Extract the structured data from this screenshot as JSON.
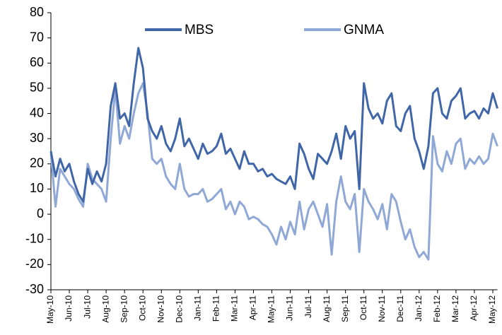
{
  "chart_data": {
    "type": "line",
    "categories": [
      "May-10",
      null,
      null,
      null,
      "Jun-10",
      null,
      null,
      null,
      "Jul-10",
      null,
      null,
      null,
      "Aug-10",
      null,
      null,
      null,
      "Sep-10",
      null,
      null,
      null,
      "Oct-10",
      null,
      null,
      null,
      "Nov-10",
      null,
      null,
      null,
      "Dec-10",
      null,
      null,
      null,
      "Jan-11",
      null,
      null,
      null,
      "Feb-11",
      null,
      null,
      null,
      "Mar-11",
      null,
      null,
      null,
      "Apr-11",
      null,
      null,
      null,
      "May-11",
      null,
      null,
      null,
      "Jun-11",
      null,
      null,
      null,
      "Jul-11",
      null,
      null,
      null,
      "Aug-11",
      null,
      null,
      null,
      "Sep-11",
      null,
      null,
      null,
      "Oct-11",
      null,
      null,
      null,
      "Nov-11",
      null,
      null,
      null,
      "Dec-11",
      null,
      null,
      null,
      "Jan-12",
      null,
      null,
      null,
      "Feb-12",
      null,
      null,
      null,
      "Mar-12",
      null,
      null,
      null,
      "Apr-12",
      null,
      null,
      null,
      "May-12",
      null
    ],
    "series": [
      {
        "name": "MBS",
        "color": "#4066a8",
        "values": [
          25,
          15,
          22,
          17,
          20,
          13,
          8,
          5,
          18,
          12,
          17,
          13,
          20,
          43,
          52,
          38,
          40,
          35,
          52,
          66,
          58,
          38,
          33,
          30,
          35,
          28,
          25,
          30,
          38,
          27,
          30,
          26,
          22,
          28,
          24,
          25,
          27,
          32,
          24,
          26,
          22,
          18,
          25,
          20,
          20,
          17,
          18,
          15,
          16,
          14,
          13,
          12,
          15,
          10,
          28,
          24,
          18,
          14,
          24,
          22,
          20,
          25,
          32,
          22,
          35,
          30,
          33,
          10,
          52,
          42,
          38,
          40,
          36,
          45,
          48,
          35,
          33,
          40,
          43,
          30,
          25,
          18,
          27,
          48,
          50,
          40,
          38,
          45,
          47,
          50,
          38,
          40,
          41,
          38,
          42,
          40,
          48,
          42
        ]
      },
      {
        "name": "GNMA",
        "color": "#8fa8d6",
        "values": [
          24,
          3,
          18,
          15,
          12,
          10,
          6,
          3,
          20,
          14,
          12,
          10,
          5,
          30,
          50,
          28,
          35,
          30,
          40,
          48,
          52,
          40,
          22,
          20,
          22,
          15,
          12,
          10,
          20,
          10,
          7,
          8,
          8,
          10,
          5,
          6,
          8,
          10,
          2,
          5,
          0,
          5,
          3,
          -2,
          -1,
          -2,
          -4,
          -5,
          -8,
          -12,
          -5,
          -10,
          -3,
          -8,
          5,
          -6,
          2,
          5,
          0,
          -5,
          4,
          -16,
          5,
          15,
          5,
          2,
          8,
          -15,
          10,
          5,
          2,
          -2,
          4,
          -6,
          8,
          5,
          -3,
          -10,
          -6,
          -13,
          -17,
          -15,
          -18,
          31,
          20,
          17,
          25,
          20,
          28,
          30,
          18,
          22,
          20,
          23,
          20,
          22,
          32,
          27
        ]
      }
    ],
    "ylim": [
      -30,
      80
    ],
    "yticks": [
      -30,
      -20,
      -10,
      0,
      10,
      20,
      30,
      40,
      50,
      60,
      70,
      80
    ],
    "grid": false,
    "legend": "top"
  }
}
